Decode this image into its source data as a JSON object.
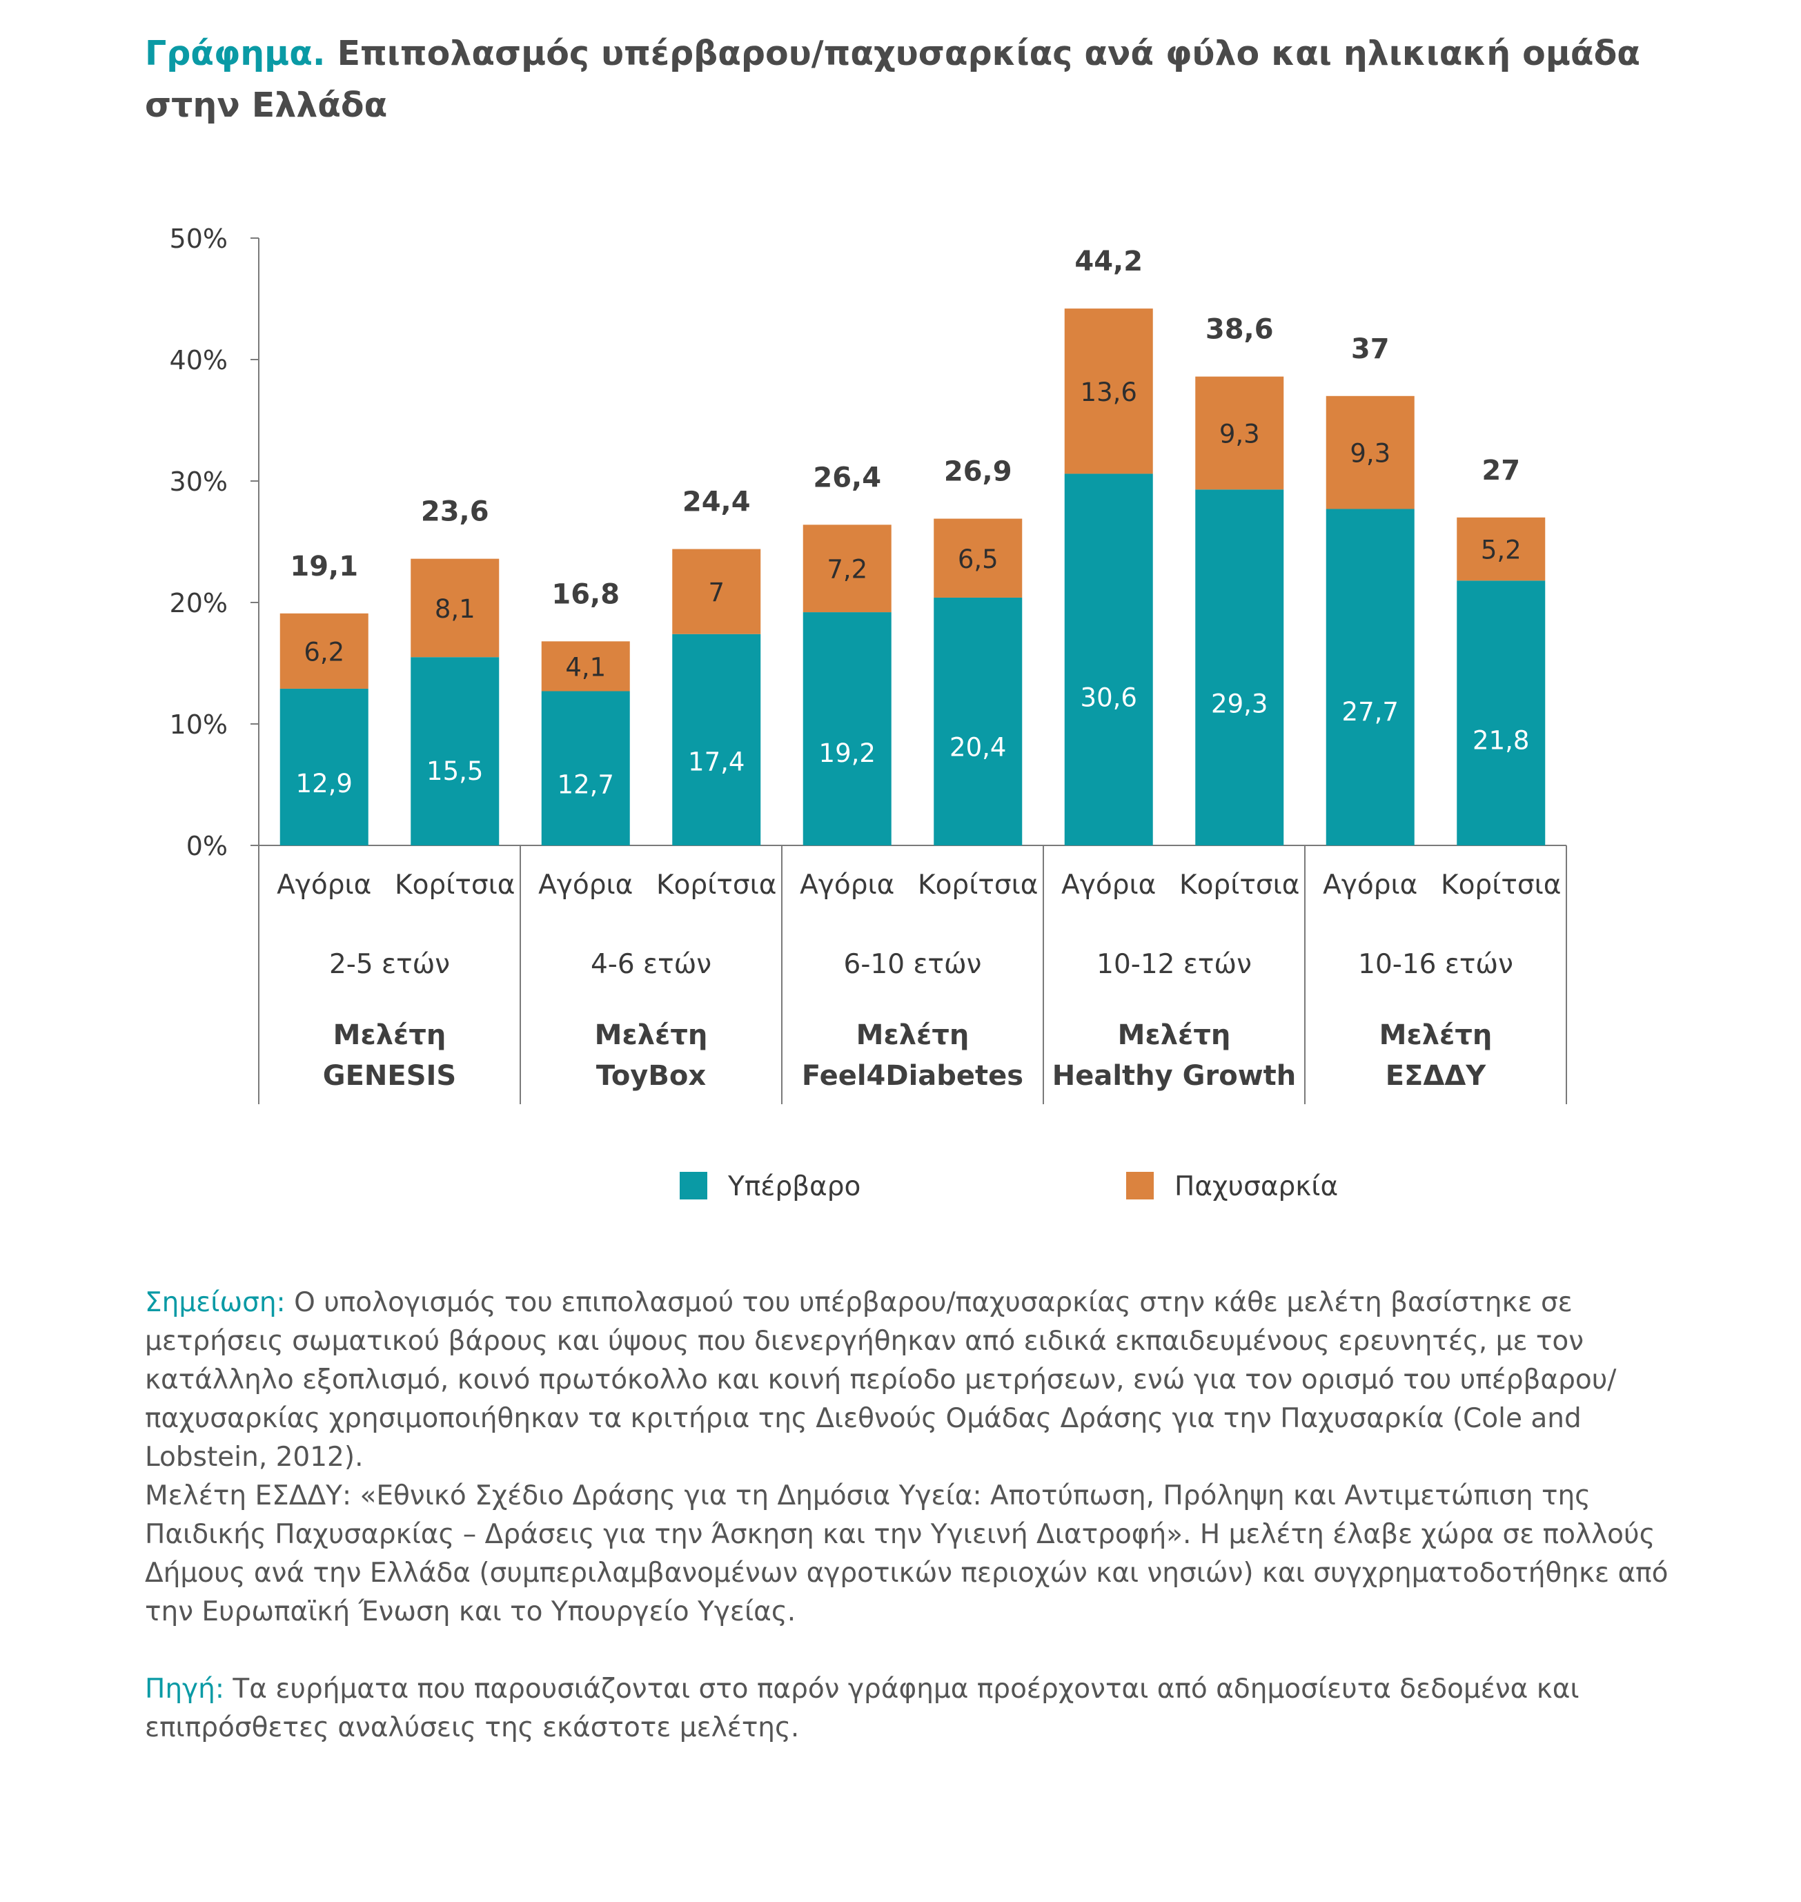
{
  "title": {
    "lead": "Γράφημα.",
    "text": "Επιπολασμός υπέρβαρου/παχυσαρκίας ανά φύλο και ηλικιακή ομάδα στην Ελλάδα"
  },
  "colors": {
    "overweight": "#0a9aa5",
    "obesity": "#db833f",
    "axis": "#7a7a7a",
    "accent": "#0a9aa5"
  },
  "chart_data": {
    "type": "bar",
    "stacked": true,
    "ylim": [
      0,
      50
    ],
    "yticks": [
      0,
      10,
      20,
      30,
      40,
      50
    ],
    "ytick_labels": [
      "0%",
      "10%",
      "20%",
      "30%",
      "40%",
      "50%"
    ],
    "categories": [
      "Αγόρια",
      "Κορίτσια",
      "Αγόρια",
      "Κορίτσια",
      "Αγόρια",
      "Κορίτσια",
      "Αγόρια",
      "Κορίτσια",
      "Αγόρια",
      "Κορίτσια"
    ],
    "series": [
      {
        "name": "Υπέρβαρο",
        "values": [
          12.9,
          15.5,
          12.7,
          17.4,
          19.2,
          20.4,
          30.6,
          29.3,
          27.7,
          21.8
        ],
        "labels": [
          "12,9",
          "15,5",
          "12,7",
          "17,4",
          "19,2",
          "20,4",
          "30,6",
          "29,3",
          "27,7",
          "21,8"
        ]
      },
      {
        "name": "Παχυσαρκία",
        "values": [
          6.2,
          8.1,
          4.1,
          7,
          7.2,
          6.5,
          13.6,
          9.3,
          9.3,
          5.2
        ],
        "labels": [
          "6,2",
          "8,1",
          "4,1",
          "7",
          "7,2",
          "6,5",
          "13,6",
          "9,3",
          "9,3",
          "5,2"
        ]
      }
    ],
    "totals": [
      19.1,
      23.6,
      16.8,
      24.4,
      26.4,
      26.9,
      44.2,
      38.6,
      37,
      27
    ],
    "total_labels": [
      "19,1",
      "23,6",
      "16,8",
      "24,4",
      "26,4",
      "26,9",
      "44,2",
      "38,6",
      "37",
      "27"
    ],
    "groups": [
      {
        "age": "2-5 ετών",
        "study": [
          "Μελέτη",
          "GENESIS"
        ]
      },
      {
        "age": "4-6 ετών",
        "study": [
          "Μελέτη",
          "ToyBox"
        ]
      },
      {
        "age": "6-10 ετών",
        "study": [
          "Μελέτη",
          "Feel4Diabetes"
        ]
      },
      {
        "age": "10-12 ετών",
        "study": [
          "Μελέτη",
          "Healthy Growth"
        ]
      },
      {
        "age": "10-16 ετών",
        "study": [
          "Μελέτη",
          "ΕΣΔΔΥ"
        ]
      }
    ],
    "legend": [
      "Υπέρβαρο",
      "Παχυσαρκία"
    ],
    "legend_position": "bottom",
    "grid": false
  },
  "notes": {
    "note_label": "Σημείωση:",
    "note_text": "Ο υπολογισμός του επιπολασμού του υπέρβαρου/παχυσαρκίας στην κάθε μελέτη βασίστηκε σε μετρήσεις σωματικού βάρους και ύψους που διενεργήθηκαν από ειδικά εκπαιδευμένους ερευνητές, με τον κατάλληλο εξοπλισμό, κοινό πρωτόκολλο και κοινή περίοδο μετρήσεων, ενώ για τον ορισμό του υπέρβαρου/παχυσαρκίας χρησιμοποιήθηκαν τα κριτήρια της Διεθνούς Ομάδας Δράσης για την Παχυσαρκία (Cole and Lobstein, 2012).",
    "study_text": "Μελέτη ΕΣΔΔΥ: «Εθνικό Σχέδιο Δράσης για τη Δημόσια Υγεία: Αποτύπωση, Πρόληψη και Αντιμετώπιση της Παιδικής Παχυσαρκίας – Δράσεις για την Άσκηση και την Υγιεινή Διατροφή». Η μελέτη έλαβε χώρα σε πολλούς Δήμους ανά την Ελλάδα (συμπεριλαμβανομένων αγροτικών περιοχών και νησιών) και συγχρηματοδοτήθηκε από την Ευρωπαϊκή Ένωση και το Υπουργείο Υγείας.",
    "source_label": "Πηγή:",
    "source_text": "Τα ευρήματα που παρουσιάζονται στο παρόν γράφημα προέρχονται από αδημοσίευτα δεδομένα και επιπρόσθετες αναλύσεις της εκάστοτε μελέτης."
  }
}
